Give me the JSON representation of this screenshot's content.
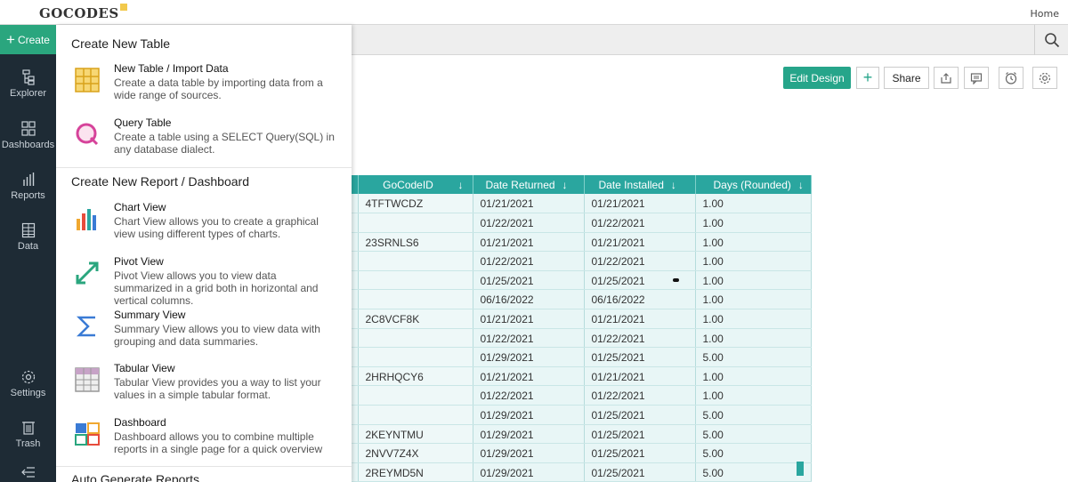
{
  "brand": {
    "logo_text": "GOCODES"
  },
  "header": {
    "home_label": "Home"
  },
  "sidebar": {
    "create_label": "Create",
    "items": [
      {
        "label": "Explorer"
      },
      {
        "label": "Dashboards"
      },
      {
        "label": "Reports"
      },
      {
        "label": "Data"
      },
      {
        "label": "Settings"
      },
      {
        "label": "Trash"
      }
    ]
  },
  "toolbar": {
    "edit_design_label": "Edit Design",
    "share_label": "Share"
  },
  "create_menu": {
    "section1_title": "Create New Table",
    "section2_title": "Create New Report / Dashboard",
    "section3_title": "Auto Generate Reports",
    "options": [
      {
        "title": "New Table / Import Data",
        "desc": "Create a data table by importing data from a wide range of sources."
      },
      {
        "title": "Query Table",
        "desc": "Create a table using a SELECT Query(SQL) in any database dialect."
      },
      {
        "title": "Chart View",
        "desc": "Chart View allows you to create a graphical view using different types of charts."
      },
      {
        "title": "Pivot View",
        "desc": "Pivot View allows you to view data summarized in a grid both in horizontal and vertical columns."
      },
      {
        "title": "Summary View",
        "desc": "Summary View allows you to view data with grouping and data summaries."
      },
      {
        "title": "Tabular View",
        "desc": "Tabular View provides you a way to list your values in a simple tabular format."
      },
      {
        "title": "Dashboard",
        "desc": "Dashboard allows you to combine multiple reports in a single page for a quick overview"
      }
    ]
  },
  "table": {
    "columns": [
      "GoCodeID",
      "Date Returned",
      "Date Installed",
      "Days (Rounded)"
    ],
    "sort_icon": "↓",
    "rows": [
      [
        "4TFTWCDZ",
        "01/21/2021",
        "01/21/2021",
        "1.00"
      ],
      [
        "",
        "01/22/2021",
        "01/22/2021",
        "1.00"
      ],
      [
        "23SRNLS6",
        "01/21/2021",
        "01/21/2021",
        "1.00"
      ],
      [
        "",
        "01/22/2021",
        "01/22/2021",
        "1.00"
      ],
      [
        "",
        "01/25/2021",
        "01/25/2021",
        "1.00"
      ],
      [
        "",
        "06/16/2022",
        "06/16/2022",
        "1.00"
      ],
      [
        "2C8VCF8K",
        "01/21/2021",
        "01/21/2021",
        "1.00"
      ],
      [
        "",
        "01/22/2021",
        "01/22/2021",
        "1.00"
      ],
      [
        "",
        "01/29/2021",
        "01/25/2021",
        "5.00"
      ],
      [
        "2HRHQCY6",
        "01/21/2021",
        "01/21/2021",
        "1.00"
      ],
      [
        "",
        "01/22/2021",
        "01/22/2021",
        "1.00"
      ],
      [
        "",
        "01/29/2021",
        "01/25/2021",
        "5.00"
      ],
      [
        "2KEYNTMU",
        "01/29/2021",
        "01/25/2021",
        "5.00"
      ],
      [
        "2NVV7Z4X",
        "01/29/2021",
        "01/25/2021",
        "5.00"
      ],
      [
        "2REYMD5N",
        "01/29/2021",
        "01/25/2021",
        "5.00"
      ]
    ]
  },
  "colors": {
    "accent": "#2aa67e",
    "table_header": "#2aa69f",
    "sidebar_bg": "#1e2b35"
  }
}
